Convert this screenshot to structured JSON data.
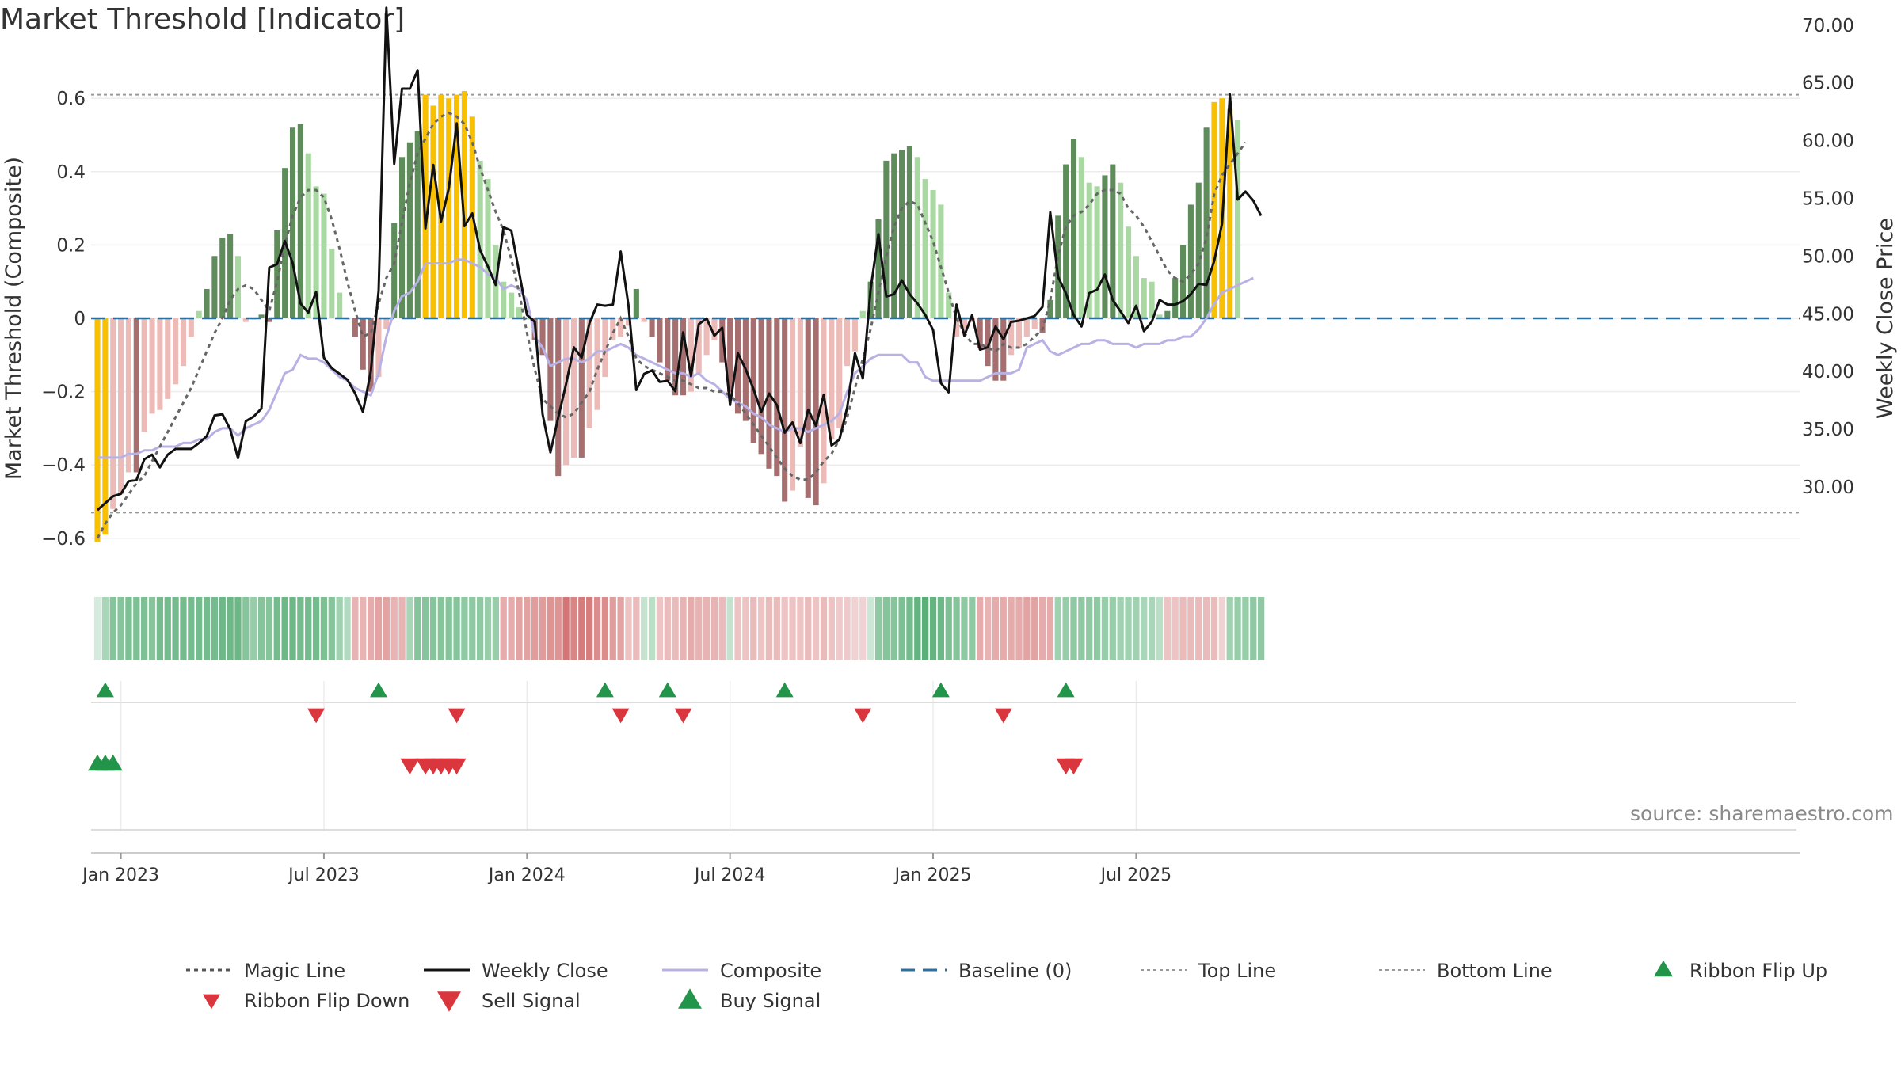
{
  "title": "Market Threshold [Indicator]",
  "source": "source: sharemaestro.com",
  "colors": {
    "gold": "#f8c000",
    "dark_green": "#5e8c5b",
    "light_green": "#a9d8a2",
    "dark_red": "#a66e6e",
    "light_red": "#ecbbb7",
    "close": "#111111",
    "composite": "#b9b1e4",
    "magic": "#666666",
    "baseline": "#2c6f9e",
    "buy": "#23954a",
    "sell": "#d9363e"
  },
  "chart_data": {
    "type": "bar",
    "title": "Market Threshold [Indicator]",
    "ylabel": "Market Threshold (Composite)",
    "ylabel_right": "Weekly Close Price",
    "ylim": [
      -0.66,
      0.66
    ],
    "ylim_right": [
      26.9,
      72.2
    ],
    "yticks_left": [
      {
        "v": 0.6,
        "label": "0.6"
      },
      {
        "v": 0.4,
        "label": "0.4"
      },
      {
        "v": 0.2,
        "label": "0.2"
      },
      {
        "v": 0,
        "label": "0"
      },
      {
        "v": -0.2,
        "label": "−0.2"
      },
      {
        "v": -0.4,
        "label": "−0.4"
      },
      {
        "v": -0.6,
        "label": "−0.6"
      }
    ],
    "yticks_right": [
      {
        "v": 70,
        "label": "70.00"
      },
      {
        "v": 65,
        "label": "65.00"
      },
      {
        "v": 60,
        "label": "60.00"
      },
      {
        "v": 55,
        "label": "55.00"
      },
      {
        "v": 50,
        "label": "50.00"
      },
      {
        "v": 45,
        "label": "45.00"
      },
      {
        "v": 40,
        "label": "40.00"
      },
      {
        "v": 35,
        "label": "35.00"
      },
      {
        "v": 30,
        "label": "30.00"
      }
    ],
    "xticks": [
      {
        "i": 3,
        "label": "Jan 2023"
      },
      {
        "i": 29,
        "label": "Jul 2023"
      },
      {
        "i": 55,
        "label": "Jan 2024"
      },
      {
        "i": 81,
        "label": "Jul 2024"
      },
      {
        "i": 107,
        "label": "Jan 2025"
      },
      {
        "i": 133,
        "label": "Jul 2025"
      }
    ],
    "top_line": 0.61,
    "bottom_line": -0.53,
    "baseline": 0,
    "composite_bars": [
      -0.61,
      -0.59,
      -0.52,
      -0.48,
      -0.42,
      -0.42,
      -0.31,
      -0.26,
      -0.25,
      -0.22,
      -0.18,
      -0.13,
      -0.05,
      0.02,
      0.08,
      0.17,
      0.22,
      0.23,
      0.17,
      -0.01,
      0,
      0.01,
      -0.01,
      0.24,
      0.41,
      0.52,
      0.53,
      0.45,
      0.36,
      0.34,
      0.19,
      0.07,
      0,
      -0.05,
      -0.14,
      -0.2,
      -0.16,
      -0.03,
      0.26,
      0.44,
      0.48,
      0.51,
      0.61,
      0.58,
      0.61,
      0.6,
      0.61,
      0.62,
      0.55,
      0.43,
      0.38,
      0.2,
      0.1,
      0.07,
      0.03,
      0,
      -0.06,
      -0.1,
      -0.28,
      -0.43,
      -0.4,
      -0.38,
      -0.38,
      -0.3,
      -0.25,
      -0.16,
      -0.06,
      -0.05,
      -0.02,
      0.08,
      -0.01,
      -0.05,
      -0.12,
      -0.17,
      -0.21,
      -0.21,
      -0.2,
      -0.15,
      -0.1,
      -0.06,
      -0.12,
      -0.2,
      -0.26,
      -0.28,
      -0.34,
      -0.37,
      -0.41,
      -0.43,
      -0.5,
      -0.47,
      -0.35,
      -0.49,
      -0.51,
      -0.45,
      -0.33,
      -0.3,
      -0.13,
      -0.09,
      0.02,
      0.1,
      0.27,
      0.43,
      0.45,
      0.46,
      0.47,
      0.44,
      0.38,
      0.35,
      0.31,
      0.07,
      -0.05,
      -0.04,
      -0.01,
      -0.08,
      -0.13,
      -0.17,
      -0.17,
      -0.1,
      -0.08,
      -0.05,
      -0.03,
      -0.04,
      0.05,
      0.28,
      0.42,
      0.49,
      0.44,
      0.37,
      0.36,
      0.39,
      0.42,
      0.37,
      0.25,
      0.17,
      0.11,
      0.1,
      0.01,
      0.02,
      0.11,
      0.2,
      0.31,
      0.37,
      0.52,
      0.59,
      0.6,
      0.57,
      0.54
    ],
    "close": [
      28.0,
      28.6,
      29.2,
      29.4,
      30.5,
      30.6,
      32.4,
      32.8,
      31.7,
      32.8,
      33.3,
      33.3,
      33.3,
      33.8,
      34.4,
      36.2,
      36.3,
      35.0,
      32.5,
      35.7,
      36.1,
      36.8,
      49.0,
      49.3,
      51.3,
      49.4,
      45.9,
      45.1,
      46.9,
      41.2,
      40.3,
      39.8,
      39.3,
      38.1,
      36.5,
      40.0,
      47.0,
      71.5,
      58.0,
      64.5,
      64.5,
      66.1,
      52.4,
      57.9,
      53.0,
      55.9,
      61.5,
      52.6,
      53.7,
      50.5,
      49.1,
      47.5,
      52.5,
      52.2,
      48.6,
      44.9,
      44.3,
      36.3,
      33.0,
      36.0,
      38.9,
      42.1,
      41.2,
      44.2,
      45.8,
      45.7,
      45.8,
      50.4,
      45.7,
      38.4,
      39.8,
      40.1,
      39.1,
      39.2,
      38.3,
      43.4,
      39.6,
      44.1,
      44.6,
      43.1,
      43.8,
      37.1,
      41.6,
      40.2,
      38.5,
      36.5,
      38.1,
      37.1,
      34.7,
      35.6,
      33.8,
      36.7,
      35.3,
      38.0,
      33.6,
      34.1,
      36.9,
      41.6,
      39.4,
      47.1,
      51.9,
      46.5,
      46.7,
      47.9,
      46.7,
      45.9,
      44.9,
      43.6,
      39.0,
      38.2,
      45.8,
      43.1,
      44.9,
      41.9,
      42.1,
      43.9,
      42.8,
      44.3,
      44.4,
      44.6,
      44.8,
      45.6,
      53.8,
      48.2,
      46.8,
      44.9,
      43.9,
      46.8,
      47.1,
      48.4,
      46.2,
      45.2,
      44.2,
      45.7,
      43.5,
      44.3,
      46.2,
      45.8,
      45.8,
      46.1,
      46.7,
      47.6,
      47.5,
      49.6,
      52.8,
      64.0,
      54.9,
      55.6,
      54.8,
      53.5
    ],
    "composite_line": [
      -0.38,
      -0.38,
      -0.38,
      -0.38,
      -0.37,
      -0.37,
      -0.36,
      -0.36,
      -0.35,
      -0.35,
      -0.35,
      -0.34,
      -0.34,
      -0.33,
      -0.33,
      -0.31,
      -0.3,
      -0.3,
      -0.32,
      -0.3,
      -0.29,
      -0.28,
      -0.25,
      -0.2,
      -0.15,
      -0.14,
      -0.1,
      -0.11,
      -0.11,
      -0.12,
      -0.14,
      -0.16,
      -0.17,
      -0.19,
      -0.2,
      -0.21,
      -0.15,
      -0.05,
      0.02,
      0.06,
      0.07,
      0.1,
      0.15,
      0.15,
      0.15,
      0.15,
      0.16,
      0.16,
      0.15,
      0.14,
      0.12,
      0.11,
      0.08,
      0.09,
      0.08,
      0.05,
      -0.05,
      -0.08,
      -0.13,
      -0.12,
      -0.11,
      -0.11,
      -0.12,
      -0.11,
      -0.09,
      -0.09,
      -0.08,
      -0.07,
      -0.08,
      -0.1,
      -0.11,
      -0.12,
      -0.13,
      -0.14,
      -0.15,
      -0.15,
      -0.16,
      -0.15,
      -0.17,
      -0.18,
      -0.2,
      -0.22,
      -0.23,
      -0.24,
      -0.26,
      -0.27,
      -0.29,
      -0.3,
      -0.31,
      -0.3,
      -0.3,
      -0.31,
      -0.3,
      -0.29,
      -0.28,
      -0.26,
      -0.2,
      -0.15,
      -0.13,
      -0.11,
      -0.1,
      -0.1,
      -0.1,
      -0.1,
      -0.12,
      -0.12,
      -0.16,
      -0.17,
      -0.17,
      -0.17,
      -0.17,
      -0.17,
      -0.17,
      -0.17,
      -0.16,
      -0.15,
      -0.15,
      -0.15,
      -0.14,
      -0.08,
      -0.07,
      -0.06,
      -0.09,
      -0.1,
      -0.09,
      -0.08,
      -0.07,
      -0.07,
      -0.06,
      -0.06,
      -0.07,
      -0.07,
      -0.07,
      -0.08,
      -0.07,
      -0.07,
      -0.07,
      -0.06,
      -0.06,
      -0.05,
      -0.05,
      -0.03,
      -0.0,
      0.04,
      0.07,
      0.08,
      0.09,
      0.1,
      0.11
    ],
    "magic_line": [
      -0.6,
      -0.56,
      -0.53,
      -0.51,
      -0.48,
      -0.45,
      -0.43,
      -0.39,
      -0.35,
      -0.31,
      -0.27,
      -0.23,
      -0.19,
      -0.14,
      -0.09,
      -0.04,
      0.0,
      0.05,
      0.08,
      0.09,
      0.08,
      0.05,
      0.02,
      0.1,
      0.2,
      0.28,
      0.33,
      0.35,
      0.35,
      0.33,
      0.27,
      0.19,
      0.1,
      0.02,
      -0.05,
      -0.04,
      0.04,
      0.11,
      0.15,
      0.26,
      0.37,
      0.45,
      0.49,
      0.53,
      0.55,
      0.56,
      0.55,
      0.53,
      0.48,
      0.41,
      0.35,
      0.29,
      0.24,
      0.16,
      0.07,
      -0.04,
      -0.14,
      -0.22,
      -0.24,
      -0.26,
      -0.27,
      -0.26,
      -0.23,
      -0.2,
      -0.14,
      -0.09,
      -0.04,
      0.0,
      -0.05,
      -0.11,
      -0.13,
      -0.14,
      -0.15,
      -0.16,
      -0.17,
      -0.17,
      -0.18,
      -0.19,
      -0.19,
      -0.2,
      -0.2,
      -0.21,
      -0.23,
      -0.26,
      -0.29,
      -0.32,
      -0.35,
      -0.38,
      -0.41,
      -0.43,
      -0.44,
      -0.44,
      -0.42,
      -0.39,
      -0.37,
      -0.33,
      -0.27,
      -0.19,
      -0.11,
      -0.03,
      0.07,
      0.17,
      0.25,
      0.3,
      0.32,
      0.31,
      0.26,
      0.21,
      0.14,
      0.07,
      0.0,
      -0.04,
      -0.07,
      -0.07,
      -0.08,
      -0.09,
      -0.07,
      -0.08,
      -0.08,
      -0.07,
      -0.05,
      -0.03,
      0.05,
      0.17,
      0.25,
      0.28,
      0.29,
      0.31,
      0.34,
      0.35,
      0.35,
      0.34,
      0.3,
      0.28,
      0.25,
      0.21,
      0.17,
      0.13,
      0.11,
      0.1,
      0.12,
      0.15,
      0.22,
      0.34,
      0.39,
      0.42,
      0.45,
      0.48
    ],
    "ribbon": [
      0.05,
      0.3,
      0.5,
      0.5,
      0.55,
      0.55,
      0.55,
      0.5,
      0.6,
      0.6,
      0.6,
      0.6,
      0.6,
      0.6,
      0.6,
      0.6,
      0.65,
      0.65,
      0.65,
      0.5,
      0.4,
      0.5,
      0.5,
      0.6,
      0.65,
      0.65,
      0.6,
      0.6,
      0.6,
      0.55,
      0.5,
      0.35,
      0.25,
      -0.3,
      -0.3,
      -0.35,
      -0.4,
      -0.4,
      -0.3,
      -0.3,
      0.3,
      0.5,
      0.5,
      0.5,
      0.5,
      0.5,
      0.5,
      0.45,
      0.45,
      0.45,
      0.4,
      0.4,
      -0.35,
      -0.35,
      -0.4,
      -0.4,
      -0.45,
      -0.45,
      -0.5,
      -0.5,
      -0.7,
      -0.6,
      -0.65,
      -0.65,
      -0.55,
      -0.55,
      -0.45,
      -0.4,
      -0.2,
      -0.25,
      0.15,
      0.2,
      -0.2,
      -0.25,
      -0.25,
      -0.3,
      -0.35,
      -0.3,
      -0.3,
      -0.3,
      -0.25,
      0.15,
      -0.2,
      -0.2,
      -0.25,
      -0.2,
      -0.25,
      -0.25,
      -0.2,
      -0.2,
      -0.2,
      -0.25,
      -0.2,
      -0.25,
      -0.2,
      -0.15,
      -0.15,
      -0.1,
      -0.1,
      0.1,
      0.45,
      0.5,
      0.5,
      0.55,
      0.6,
      0.7,
      0.75,
      0.7,
      0.65,
      0.55,
      0.5,
      0.45,
      0.45,
      -0.35,
      -0.3,
      -0.35,
      -0.35,
      -0.35,
      -0.35,
      -0.4,
      -0.4,
      -0.35,
      -0.35,
      0.35,
      0.4,
      0.45,
      0.45,
      0.45,
      0.45,
      0.4,
      0.4,
      0.35,
      0.35,
      0.35,
      0.3,
      0.3,
      0.2,
      -0.2,
      -0.2,
      -0.25,
      -0.25,
      -0.25,
      -0.25,
      -0.25,
      -0.1,
      0.35,
      0.4,
      0.4,
      0.45,
      0.45
    ],
    "ribbon_flip_up": [
      1,
      36,
      65,
      73,
      88,
      108,
      124
    ],
    "ribbon_flip_down": [
      28,
      46,
      67,
      75,
      98,
      116
    ],
    "buy_signal": [
      0,
      1,
      2
    ],
    "sell_signal": [
      40,
      42,
      43,
      44,
      45,
      46,
      124,
      125
    ],
    "legend": [
      {
        "label": "Magic Line",
        "kind": "dotted",
        "color": "#555555"
      },
      {
        "label": "Weekly Close",
        "kind": "solid",
        "color": "#111111"
      },
      {
        "label": "Composite",
        "kind": "solid",
        "color": "#b9b1e4"
      },
      {
        "label": "Baseline (0)",
        "kind": "dashed",
        "color": "#2c6f9e"
      },
      {
        "label": "Top Line",
        "kind": "dotted-light",
        "color": "#999999"
      },
      {
        "label": "Bottom Line",
        "kind": "dotted-light",
        "color": "#999999"
      },
      {
        "label": "Ribbon Flip Up",
        "kind": "tri-up",
        "color": "#23954a"
      },
      {
        "label": "Ribbon Flip Down",
        "kind": "tri-down",
        "color": "#d9363e"
      },
      {
        "label": "Sell Signal",
        "kind": "tri-down-big",
        "color": "#d9363e"
      },
      {
        "label": "Buy Signal",
        "kind": "tri-up-big",
        "color": "#23954a"
      }
    ]
  }
}
